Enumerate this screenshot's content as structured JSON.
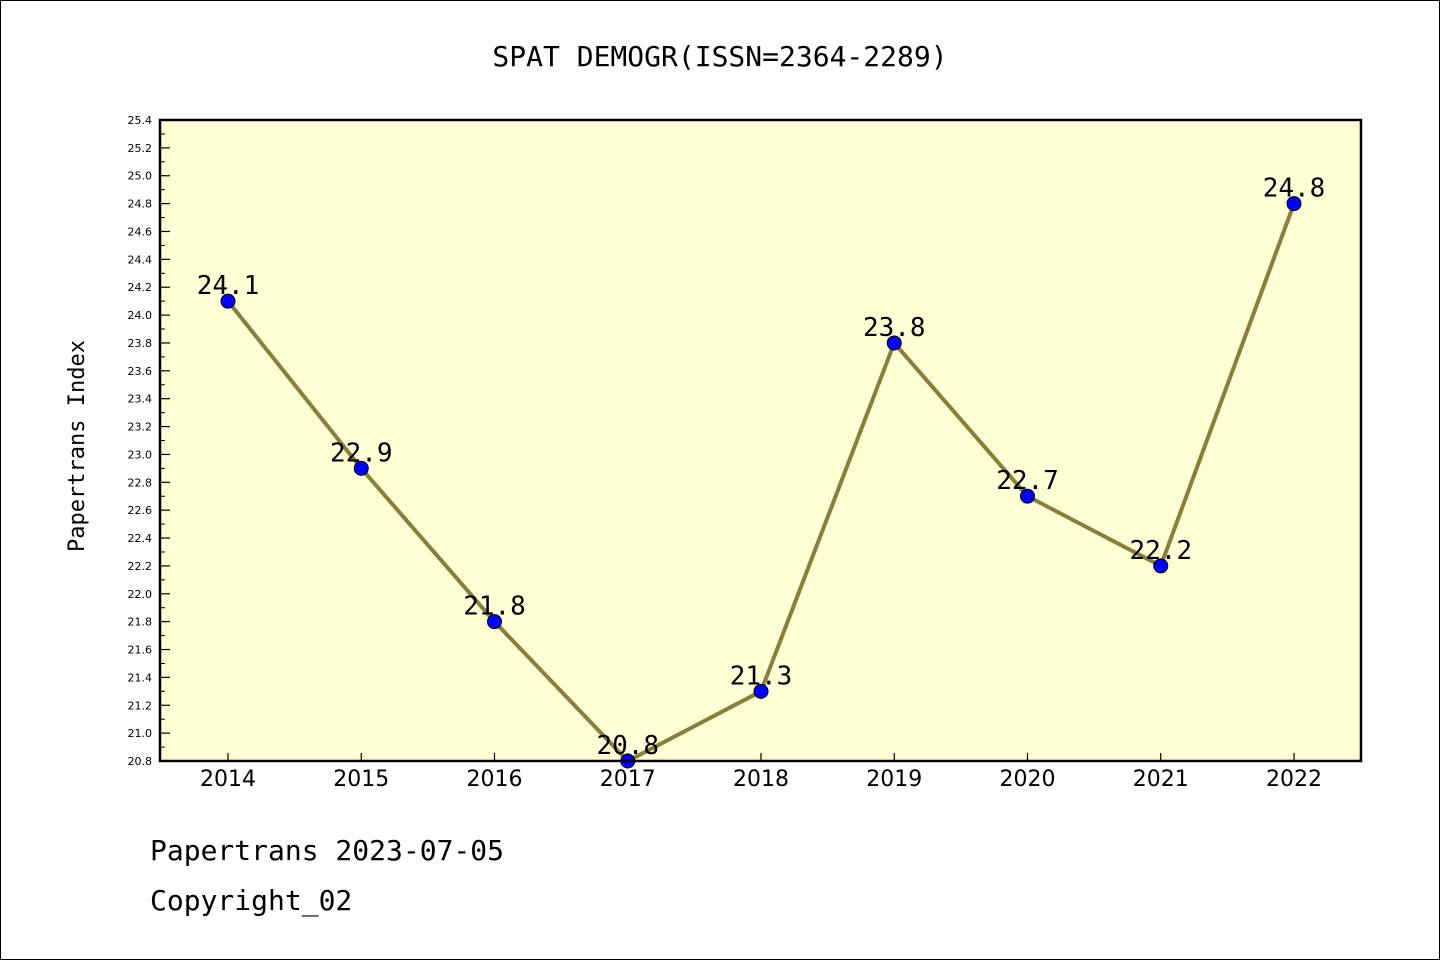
{
  "colors": {
    "plot_background": "#ffffd6",
    "line": "#8b7d3a",
    "marker": "#0000ff"
  },
  "chart_data": {
    "type": "line",
    "title": "SPAT DEMOGR(ISSN=2364-2289)",
    "xlabel": "",
    "ylabel": "Papertrans Index",
    "categories": [
      "2014",
      "2015",
      "2016",
      "2017",
      "2018",
      "2019",
      "2020",
      "2021",
      "2022"
    ],
    "values": [
      24.1,
      22.9,
      21.8,
      20.8,
      21.3,
      23.8,
      22.7,
      22.2,
      24.8
    ],
    "data_labels": [
      "24.1",
      "22.9",
      "21.8",
      "20.8",
      "21.3",
      "23.8",
      "22.7",
      "22.2",
      "24.8"
    ],
    "ylim": [
      20.8,
      25.4
    ],
    "yticks": [
      "20.8",
      "21.0",
      "21.2",
      "21.4",
      "21.6",
      "21.8",
      "22.0",
      "22.2",
      "22.4",
      "22.6",
      "22.8",
      "23.0",
      "23.2",
      "23.4",
      "23.6",
      "23.8",
      "24.0",
      "24.2",
      "24.4",
      "24.6",
      "24.8",
      "25.0",
      "25.2",
      "25.4"
    ],
    "grid": false,
    "legend": "none"
  },
  "footer": {
    "line1": "Papertrans 2023-07-05",
    "line2": "Copyright_02"
  }
}
